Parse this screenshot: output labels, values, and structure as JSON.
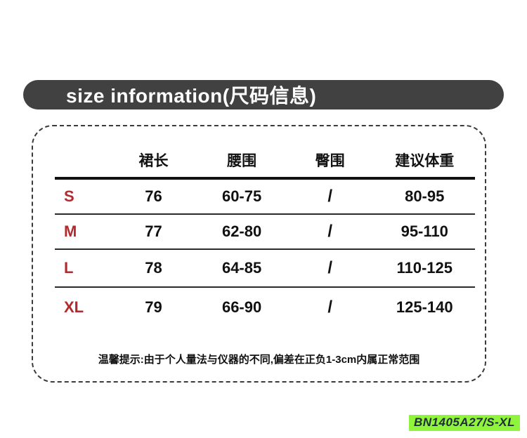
{
  "banner": {
    "title": "size information(尺码信息)",
    "bg_color": "#414141",
    "text_color": "#ffffff"
  },
  "chart_data": {
    "type": "table",
    "title": "size information(尺码信息)",
    "columns": [
      "",
      "裙长",
      "腰围",
      "臀围",
      "建议体重"
    ],
    "rows": [
      {
        "size": "S",
        "values": [
          "76",
          "60-75",
          "/",
          "80-95"
        ]
      },
      {
        "size": "M",
        "values": [
          "77",
          "62-80",
          "/",
          "95-110"
        ]
      },
      {
        "size": "L",
        "values": [
          "78",
          "64-85",
          "/",
          "110-125"
        ]
      },
      {
        "size": "XL",
        "values": [
          "79",
          "66-90",
          "/",
          "125-140"
        ]
      }
    ],
    "size_letter_color": "#b2292e",
    "value_text_color": "#111111"
  },
  "note": {
    "text": "温馨提示:由于个人量法与仪器的不同,偏差在正负1-3cm内属正常范围"
  },
  "sku_label": {
    "text": "BN1405A27/S-XL",
    "bg_color": "#90f33c",
    "text_color": "#1e2c3c"
  }
}
